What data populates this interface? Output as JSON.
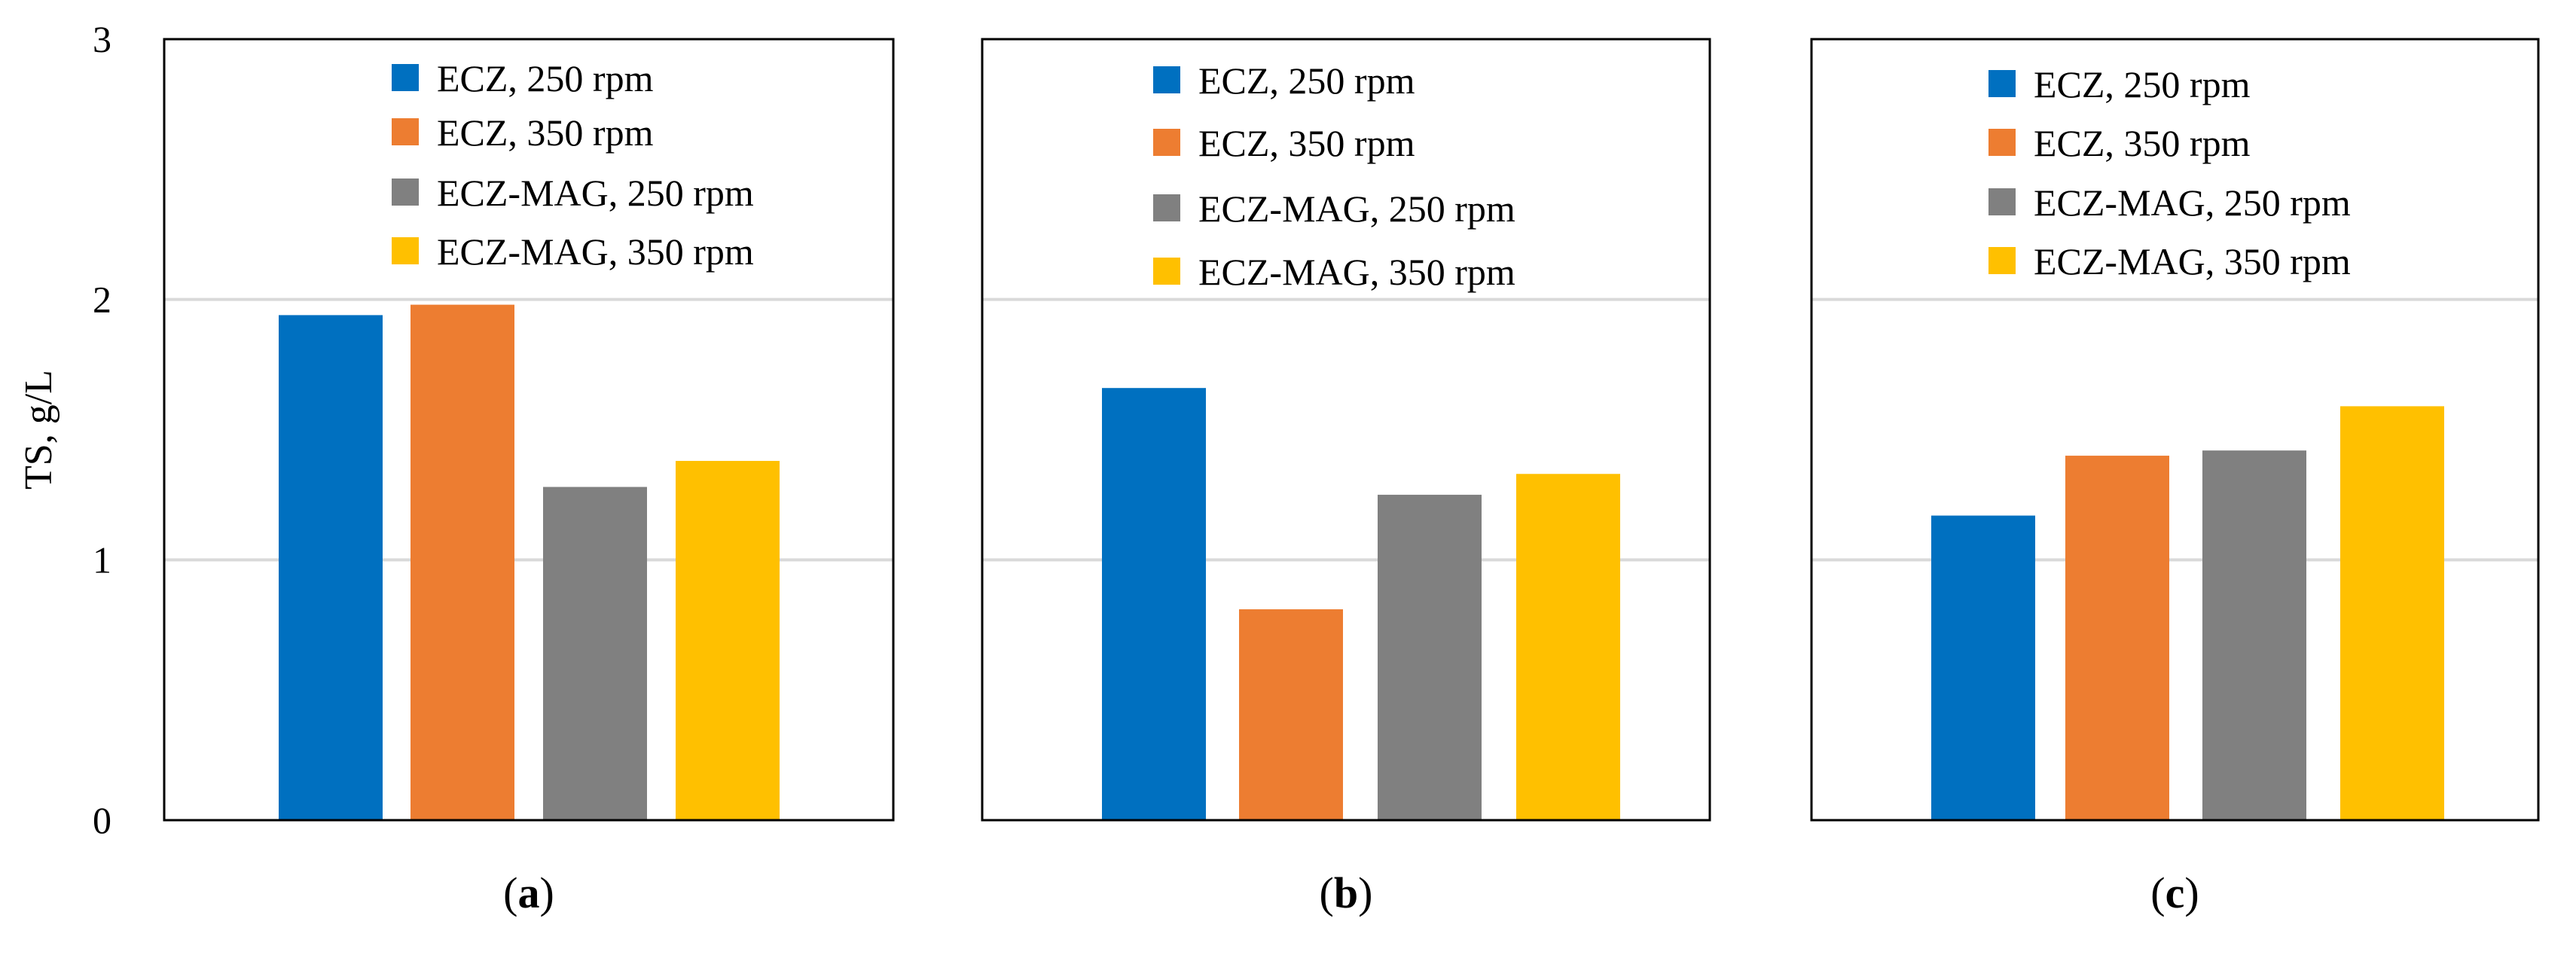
{
  "chart_data": [
    {
      "type": "bar",
      "panel_label": "a",
      "ylabel": "TS, g/L",
      "ylim": [
        0,
        3
      ],
      "yticks": [
        "0",
        "1",
        "2",
        "3"
      ],
      "grid": true,
      "legend_position": "top-right",
      "series": [
        {
          "name": "ECZ, 250 rpm",
          "values": [
            1.94
          ]
        },
        {
          "name": "ECZ, 350 rpm",
          "values": [
            1.98
          ]
        },
        {
          "name": "ECZ-MAG, 250 rpm",
          "values": [
            1.28
          ]
        },
        {
          "name": "ECZ-MAG, 350 rpm",
          "values": [
            1.38
          ]
        }
      ]
    },
    {
      "type": "bar",
      "panel_label": "b",
      "ylim": [
        0,
        3
      ],
      "grid": true,
      "legend_position": "top-right",
      "series": [
        {
          "name": "ECZ, 250 rpm",
          "values": [
            1.66
          ]
        },
        {
          "name": "ECZ, 350 rpm",
          "values": [
            0.81
          ]
        },
        {
          "name": "ECZ-MAG, 250 rpm",
          "values": [
            1.25
          ]
        },
        {
          "name": "ECZ-MAG, 350 rpm",
          "values": [
            1.33
          ]
        }
      ]
    },
    {
      "type": "bar",
      "panel_label": "c",
      "ylim": [
        0,
        3
      ],
      "grid": true,
      "legend_position": "top-right",
      "series": [
        {
          "name": "ECZ, 250 rpm",
          "values": [
            1.17
          ]
        },
        {
          "name": "ECZ, 350 rpm",
          "values": [
            1.4
          ]
        },
        {
          "name": "ECZ-MAG, 250 rpm",
          "values": [
            1.42
          ]
        },
        {
          "name": "ECZ-MAG, 350 rpm",
          "values": [
            1.59
          ]
        }
      ]
    }
  ],
  "colors": {
    "series": [
      "#0070C0",
      "#ED7D31",
      "#808080",
      "#FFC000"
    ],
    "grid": "#D9D9D9",
    "frame": "#000000"
  }
}
